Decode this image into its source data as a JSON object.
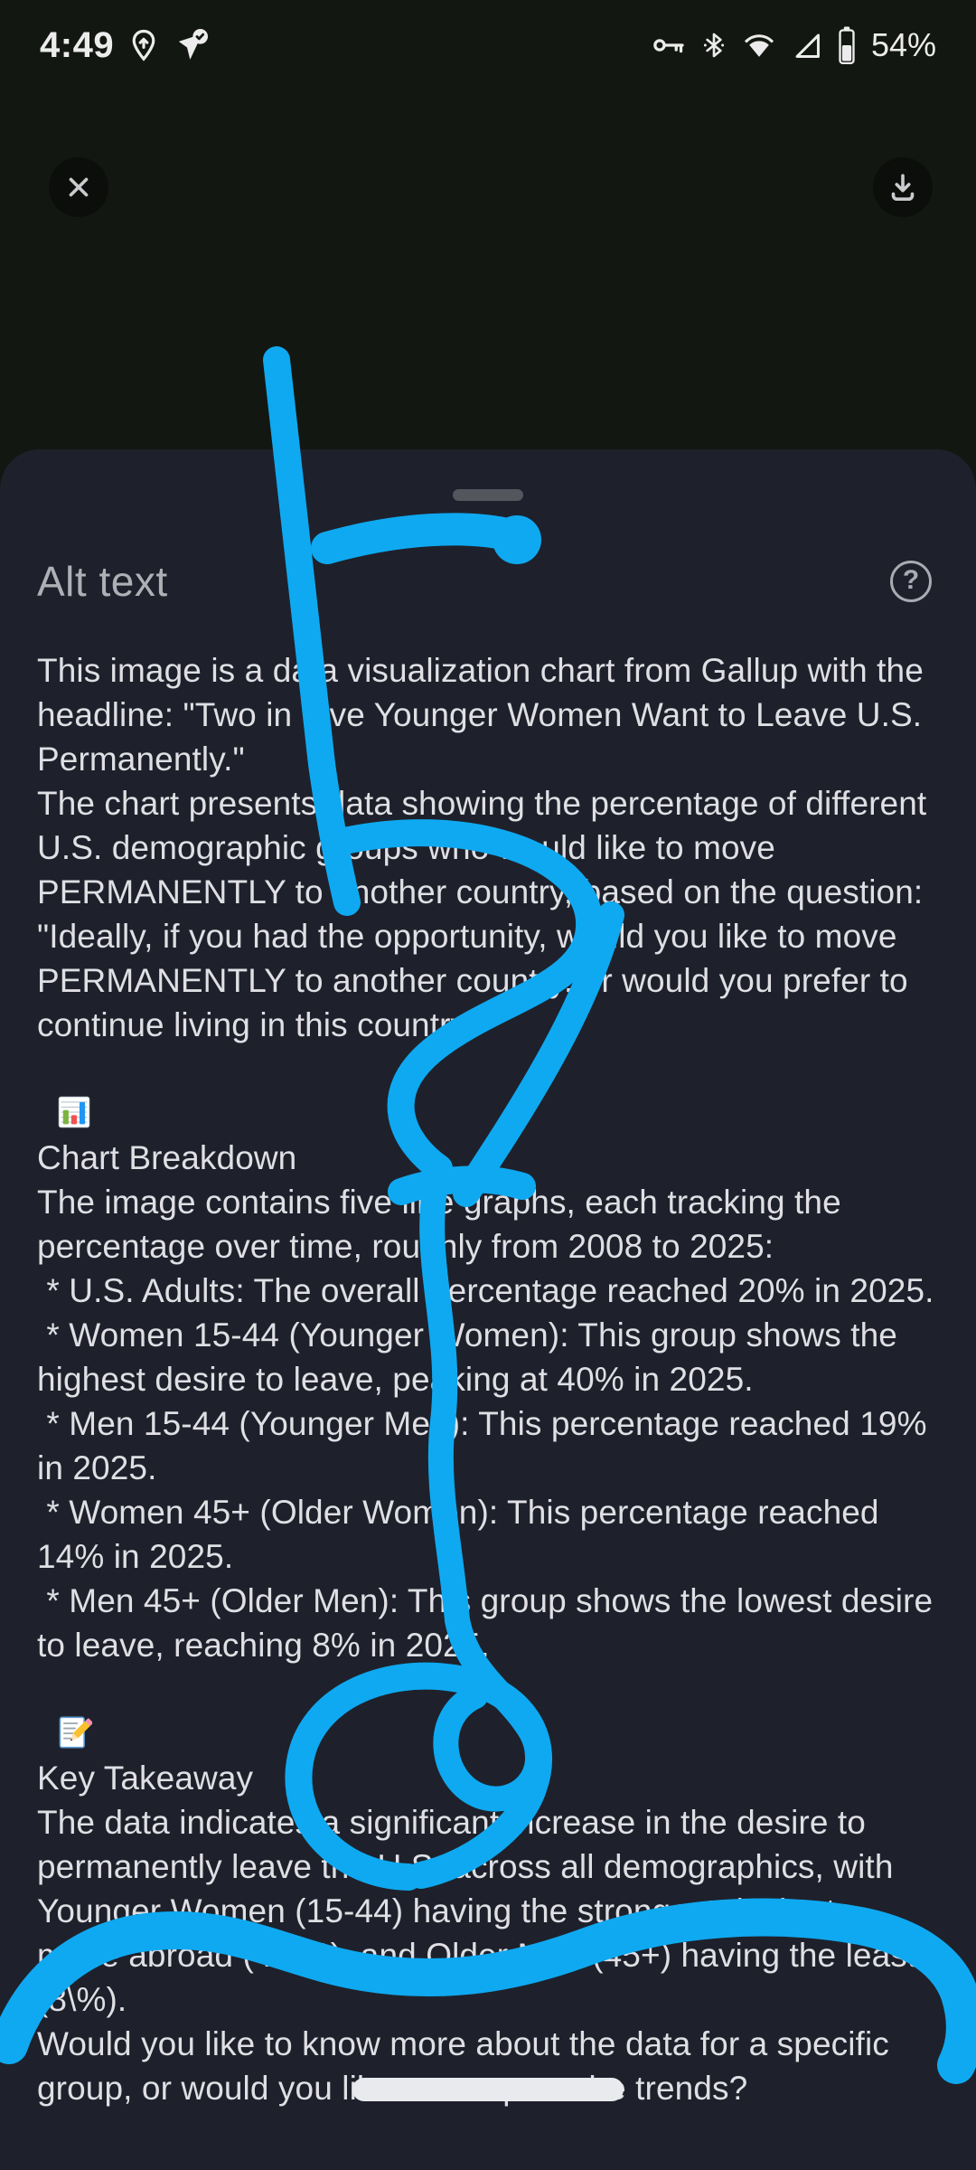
{
  "status_bar": {
    "time": "4:49",
    "battery_percent": "54%",
    "left_icons": [
      "location-sharing-icon",
      "navigation-check-icon"
    ],
    "right_icons": [
      "vpn-key-icon",
      "bluetooth-icon",
      "wifi-icon",
      "cell-signal-icon",
      "battery-icon"
    ]
  },
  "toolbar": {
    "close_icon": "close-icon",
    "download_icon": "download-icon"
  },
  "sheet": {
    "title": "Alt text",
    "help_glyph": "?",
    "paragraphs": [
      {
        "text": "This image is a data visualization chart from Gallup with the headline: \"Two in Five Younger Women Want to Leave U.S. Permanently.\""
      },
      {
        "text": "The chart presents data showing the percentage of different U.S. demographic groups who would like to move PERMANENTLY to another country, based on the question: \"Ideally, if you had the opportunity, would you like to move PERMANENTLY to another country, or would you prefer to continue living in this country?\""
      },
      {
        "emoji": "bar-chart-emoji",
        "text": "Chart Breakdown"
      },
      {
        "text": "The image contains five line graphs, each tracking the percentage over time, roughly from 2008 to 2025:"
      },
      {
        "text": " * U.S. Adults: The overall percentage reached 20% in 2025."
      },
      {
        "text": " * Women 15-44 (Younger Women): This group shows the highest desire to leave, peaking at 40% in 2025."
      },
      {
        "text": " * Men 15-44 (Younger Men): This percentage reached 19% in 2025."
      },
      {
        "text": " * Women 45+ (Older Women): This percentage reached 14% in 2025."
      },
      {
        "text": " * Men 45+ (Older Men): This group shows the lowest desire to leave, reaching 8% in 2025."
      },
      {
        "emoji": "memo-emoji",
        "text": "Key Takeaway"
      },
      {
        "text": "The data indicates a significant increase in the desire to permanently leave the U.S. across all demographics, with Younger Women (15-44) having the strongest desire to move abroad (40\\%), and Older Men (45+) having the least (8\\%)."
      },
      {
        "text": "Would you like to know more about the data for a specific group, or would you like to compare the trends?"
      }
    ]
  },
  "annotation": {
    "color": "#0fa9f1"
  },
  "colors": {
    "marker_blue": "#0fa9f1",
    "screen_background": "#131711",
    "sheet_background": "#1e212b",
    "body_text": "#dfdfe4",
    "title_text": "#aeb0b6"
  }
}
